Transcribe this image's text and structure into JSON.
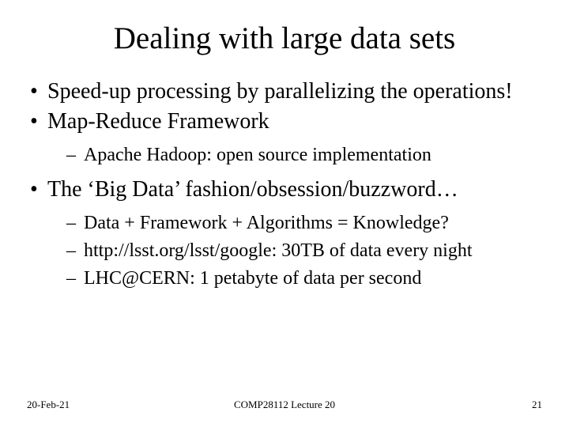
{
  "title": "Dealing with large data sets",
  "bullets": [
    {
      "text": "Speed-up processing by parallelizing the operations!",
      "children": []
    },
    {
      "text": "Map-Reduce Framework",
      "children": [
        {
          "text": "Apache Hadoop: open source implementation"
        }
      ]
    },
    {
      "text": "The ‘Big Data’ fashion/obsession/buzzword…",
      "children": [
        {
          "text": "Data + Framework + Algorithms = Knowledge?"
        },
        {
          "text": "http://lsst.org/lsst/google: 30TB of data every night"
        },
        {
          "text": "LHC@CERN: 1 petabyte of data per second"
        }
      ]
    }
  ],
  "footer": {
    "date": "20-Feb-21",
    "center": "COMP28112 Lecture 20",
    "pagenum": "21"
  },
  "style": {
    "background_color": "#ffffff",
    "text_color": "#000000",
    "font_family": "Times New Roman",
    "title_fontsize": 39,
    "level1_fontsize": 28,
    "level2_fontsize": 24,
    "footer_fontsize": 13
  }
}
